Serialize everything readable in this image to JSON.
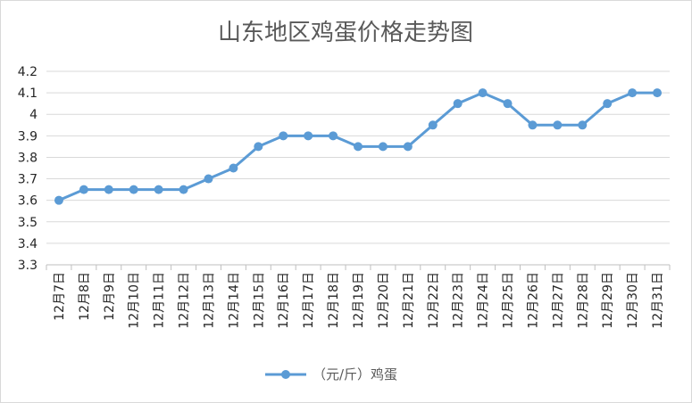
{
  "chart_data": {
    "type": "line",
    "title": "山东地区鸡蛋价格走势图",
    "xlabel": "",
    "ylabel": "",
    "ylim": [
      3.3,
      4.2
    ],
    "yticks": [
      "3.3",
      "3.4",
      "3.5",
      "3.6",
      "3.7",
      "3.8",
      "3.9",
      "4",
      "4.1",
      "4.2"
    ],
    "grid": true,
    "legend_position": "bottom",
    "categories": [
      "12月7日",
      "12月8日",
      "12月9日",
      "12月10日",
      "12月11日",
      "12月12日",
      "12月13日",
      "12月14日",
      "12月15日",
      "12月16日",
      "12月17日",
      "12月18日",
      "12月19日",
      "12月20日",
      "12月21日",
      "12月22日",
      "12月23日",
      "12月24日",
      "12月25日",
      "12月26日",
      "12月27日",
      "12月28日",
      "12月29日",
      "12月30日",
      "12月31日"
    ],
    "series": [
      {
        "name": "（元/斤）鸡蛋",
        "color": "#5b9bd5",
        "values": [
          3.6,
          3.65,
          3.65,
          3.65,
          3.65,
          3.65,
          3.7,
          3.75,
          3.85,
          3.9,
          3.9,
          3.9,
          3.85,
          3.85,
          3.85,
          3.95,
          4.05,
          4.1,
          4.05,
          3.95,
          3.95,
          3.95,
          4.05,
          4.1,
          4.1
        ]
      }
    ]
  }
}
